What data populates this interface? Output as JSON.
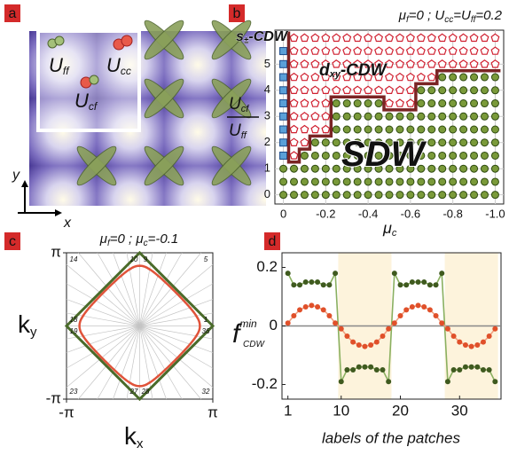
{
  "panel_labels": [
    "a",
    "b",
    "c",
    "d"
  ],
  "panel_a": {
    "labels": [
      [
        "U",
        "ff"
      ],
      [
        "U",
        "cc"
      ],
      [
        "U",
        "cf"
      ]
    ],
    "axes": [
      "x",
      "y"
    ]
  },
  "chart_data": [
    {
      "type": "phase-diagram",
      "annotation": [
        "μ",
        "f",
        "=0 ; U",
        "cc",
        "=U",
        "ff",
        "=0.2"
      ],
      "x_label": [
        "μ",
        "c"
      ],
      "y_label": {
        "numerator": [
          "U",
          "cf"
        ],
        "denominator": [
          "U",
          "ff"
        ]
      },
      "xlim": [
        0.04,
        -1.04
      ],
      "ylim": [
        -0.35,
        6.3
      ],
      "xticks": [
        0,
        -0.2,
        -0.4,
        -0.6,
        -0.8,
        {
          "value": -1,
          "label": "-1.0"
        }
      ],
      "yticks": [
        0,
        1,
        2,
        3,
        4,
        5
      ],
      "grid": true,
      "series": [
        {
          "name": [
            "SDW"
          ],
          "color": "#7a9a3a",
          "marker": "circle",
          "columns": [
            {
              "x": 0,
              "y": [
                0,
                0.5,
                1
              ]
            },
            {
              "x": -0.05,
              "y": [
                0,
                0.5,
                1
              ]
            },
            {
              "x": -0.1,
              "y": [
                0,
                0.5,
                1,
                1.5
              ]
            },
            {
              "x": -0.15,
              "y": [
                0,
                0.5,
                1,
                1.5,
                2
              ]
            },
            {
              "x": -0.2,
              "y": [
                0,
                0.5,
                1,
                1.5,
                2
              ]
            },
            {
              "x": -0.25,
              "y": [
                0,
                0.5,
                1,
                1.5,
                2,
                2.5,
                3,
                3.5
              ]
            },
            {
              "x": -0.3,
              "y": [
                0,
                0.5,
                1,
                1.5,
                2,
                2.5,
                3,
                3.5
              ]
            },
            {
              "x": -0.35,
              "y": [
                0,
                0.5,
                1,
                1.5,
                2,
                2.5,
                3,
                3.5
              ]
            },
            {
              "x": -0.4,
              "y": [
                0,
                0.5,
                1,
                1.5,
                2,
                2.5,
                3,
                3.5
              ]
            },
            {
              "x": -0.45,
              "y": [
                0,
                0.5,
                1,
                1.5,
                2,
                2.5,
                3,
                3.5
              ]
            },
            {
              "x": -0.5,
              "y": [
                0,
                0.5,
                1,
                1.5,
                2,
                2.5,
                3
              ]
            },
            {
              "x": -0.55,
              "y": [
                0,
                0.5,
                1,
                1.5,
                2,
                2.5,
                3
              ]
            },
            {
              "x": -0.6,
              "y": [
                0,
                0.5,
                1,
                1.5,
                2,
                2.5,
                3
              ]
            },
            {
              "x": -0.65,
              "y": [
                0,
                0.5,
                1,
                1.5,
                2,
                2.5,
                3,
                3.5,
                4
              ]
            },
            {
              "x": -0.7,
              "y": [
                0,
                0.5,
                1,
                1.5,
                2,
                2.5,
                3,
                3.5,
                4
              ]
            },
            {
              "x": -0.75,
              "y": [
                0,
                0.5,
                1,
                1.5,
                2,
                2.5,
                3,
                3.5,
                4,
                4.5
              ]
            },
            {
              "x": -0.8,
              "y": [
                0,
                0.5,
                1,
                1.5,
                2,
                2.5,
                3,
                3.5,
                4,
                4.5
              ]
            },
            {
              "x": -0.85,
              "y": [
                0,
                0.5,
                1,
                1.5,
                2,
                2.5,
                3,
                3.5,
                4,
                4.5
              ]
            },
            {
              "x": -0.9,
              "y": [
                0,
                0.5,
                1,
                1.5,
                2,
                2.5,
                3,
                3.5,
                4,
                4.5
              ]
            },
            {
              "x": -0.95,
              "y": [
                0,
                0.5,
                1,
                1.5,
                2,
                2.5,
                3,
                3.5,
                4,
                4.5
              ]
            },
            {
              "x": -1,
              "y": [
                0,
                0.5,
                1,
                1.5,
                2,
                2.5,
                3,
                3.5,
                4,
                4.5
              ]
            }
          ]
        },
        {
          "name": [
            "d",
            "xy",
            "-CDW"
          ],
          "color": "#d02030",
          "marker": "pentagon",
          "columns": [
            {
              "x": -0.05,
              "y": [
                1.5,
                2,
                2.5,
                3,
                3.5,
                4,
                4.5,
                5,
                5.5,
                6
              ]
            },
            {
              "x": -0.1,
              "y": [
                2,
                2.5,
                3,
                3.5,
                4,
                4.5,
                5,
                5.5,
                6
              ]
            },
            {
              "x": -0.15,
              "y": [
                2.5,
                3,
                3.5,
                4,
                4.5,
                5,
                5.5,
                6
              ]
            },
            {
              "x": -0.2,
              "y": [
                2.5,
                3,
                3.5,
                4,
                4.5,
                5,
                5.5,
                6
              ]
            },
            {
              "x": -0.25,
              "y": [
                4,
                4.5,
                5,
                5.5,
                6
              ]
            },
            {
              "x": -0.3,
              "y": [
                4,
                4.5,
                5,
                5.5,
                6
              ]
            },
            {
              "x": -0.35,
              "y": [
                4,
                4.5,
                5,
                5.5,
                6
              ]
            },
            {
              "x": -0.4,
              "y": [
                4,
                4.5,
                5,
                5.5,
                6
              ]
            },
            {
              "x": -0.45,
              "y": [
                4,
                4.5,
                5,
                5.5,
                6
              ]
            },
            {
              "x": -0.5,
              "y": [
                3.5,
                4,
                4.5,
                5,
                5.5,
                6
              ]
            },
            {
              "x": -0.55,
              "y": [
                3.5,
                4,
                4.5,
                5,
                5.5,
                6
              ]
            },
            {
              "x": -0.6,
              "y": [
                3.5,
                4,
                4.5,
                5,
                5.5,
                6
              ]
            },
            {
              "x": -0.65,
              "y": [
                4.5,
                5,
                5.5,
                6
              ]
            },
            {
              "x": -0.7,
              "y": [
                4.5,
                5,
                5.5,
                6
              ]
            },
            {
              "x": -0.75,
              "y": [
                5,
                5.5,
                6
              ]
            },
            {
              "x": -0.8,
              "y": [
                5,
                5.5,
                6
              ]
            },
            {
              "x": -0.85,
              "y": [
                5,
                5.5,
                6
              ]
            },
            {
              "x": -0.9,
              "y": [
                5,
                5.5,
                6
              ]
            },
            {
              "x": -0.95,
              "y": [
                5,
                5.5,
                6
              ]
            },
            {
              "x": -1,
              "y": [
                5,
                5.5,
                6
              ]
            }
          ]
        },
        {
          "name": [
            "s",
            "±",
            "-CDW"
          ],
          "color": "#5aa0d8",
          "marker": "square",
          "columns": [
            {
              "x": 0,
              "y": [
                1.5,
                2,
                2.5,
                3,
                3.5,
                4,
                4.5,
                5,
                5.5
              ]
            }
          ]
        }
      ],
      "boundary": {
        "color": "#7a2424",
        "x": [
          -0.025,
          -0.025,
          -0.075,
          -0.075,
          -0.125,
          -0.125,
          -0.225,
          -0.225,
          -0.475,
          -0.475,
          -0.625,
          -0.625,
          -0.725,
          -0.725,
          -1.025
        ],
        "y": [
          6.25,
          1.25,
          1.25,
          1.75,
          1.75,
          2.25,
          2.25,
          3.75,
          3.75,
          3.25,
          3.25,
          4.25,
          4.25,
          4.75,
          4.75
        ]
      }
    },
    {
      "type": "patches",
      "annotation": [
        "μ",
        "f",
        "=0 ; μ",
        "c",
        "=-0.1"
      ],
      "x_label": [
        "k",
        "x"
      ],
      "y_label": [
        "k",
        "y"
      ],
      "xlim": [
        -3.1416,
        3.1416
      ],
      "ylim": [
        -3.1416,
        3.1416
      ],
      "xticks": [
        {
          "value": -3.1416,
          "label": "-π"
        },
        {
          "value": 3.1416,
          "label": "π"
        }
      ],
      "yticks": [
        {
          "value": -3.1416,
          "label": "-π"
        },
        {
          "value": 3.1416,
          "label": "π"
        }
      ],
      "patch_labels": [
        1,
        5,
        9,
        10,
        14,
        18,
        19,
        23,
        27,
        28,
        32,
        36
      ],
      "colors": {
        "zone": "#4a6b2a",
        "surface": "#e0533a",
        "patch": "#3a7fc4"
      }
    },
    {
      "type": "line",
      "y_label": {
        "base": "f",
        "sup": "min",
        "sub": "CDW"
      },
      "x_label": "labels of the patches",
      "x": [
        1,
        2,
        3,
        4,
        5,
        6,
        7,
        8,
        9,
        10,
        11,
        12,
        13,
        14,
        15,
        16,
        17,
        18,
        19,
        20,
        21,
        22,
        23,
        24,
        25,
        26,
        27,
        28,
        29,
        30,
        31,
        32,
        33,
        34,
        35,
        36
      ],
      "series": [
        {
          "color": "#3f5a1f",
          "line_color": "#8ab060",
          "values": [
            0.18,
            0.14,
            0.14,
            0.15,
            0.15,
            0.15,
            0.14,
            0.14,
            0.18,
            -0.19,
            -0.15,
            -0.15,
            -0.14,
            -0.14,
            -0.14,
            -0.15,
            -0.15,
            -0.19,
            0.18,
            0.14,
            0.14,
            0.15,
            0.15,
            0.15,
            0.14,
            0.14,
            0.18,
            -0.19,
            -0.15,
            -0.15,
            -0.14,
            -0.14,
            -0.14,
            -0.15,
            -0.15,
            -0.19
          ]
        },
        {
          "color": "#e0502a",
          "line_color": "#f0a080",
          "values": [
            0.01,
            0.035,
            0.055,
            0.065,
            0.07,
            0.065,
            0.055,
            0.035,
            0.01,
            -0.01,
            -0.035,
            -0.055,
            -0.065,
            -0.07,
            -0.065,
            -0.055,
            -0.035,
            -0.01,
            0.01,
            0.035,
            0.055,
            0.065,
            0.07,
            0.065,
            0.055,
            0.035,
            0.01,
            -0.01,
            -0.035,
            -0.055,
            -0.065,
            -0.07,
            -0.065,
            -0.055,
            -0.035,
            -0.01
          ]
        }
      ],
      "xlim": [
        0,
        37
      ],
      "ylim": [
        -0.25,
        0.25
      ],
      "xticks": [
        1,
        10,
        20,
        30
      ],
      "yticks": [
        -0.2,
        0,
        0.2
      ],
      "highlight_spans": [
        [
          9.5,
          18.5
        ],
        [
          27.5,
          36.5
        ]
      ],
      "highlight_color": "#fdf3dc",
      "zero_line": true
    }
  ]
}
